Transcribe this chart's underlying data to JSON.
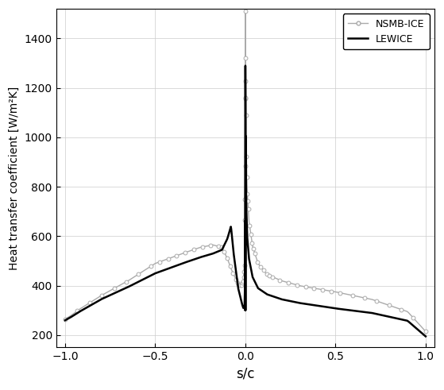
{
  "title": "",
  "xlabel": "s/c",
  "ylabel": "Heat transfer coefficient [W/m²K]",
  "xlim": [
    -1.05,
    1.05
  ],
  "ylim": [
    150,
    1520
  ],
  "yticks": [
    200,
    400,
    600,
    800,
    1000,
    1200,
    1400
  ],
  "xticks": [
    -1.0,
    -0.5,
    0.0,
    0.5,
    1.0
  ],
  "legend_labels": [
    "NSMB-ICE",
    "LEWICE"
  ],
  "nsmb_color": "#aaaaaa",
  "lewice_color": "#000000",
  "background_color": "#ffffff",
  "grid_color": "#cccccc",
  "nsmb_lw": 1.0,
  "lewice_lw": 1.8,
  "marker_size": 3.5,
  "xlabel_fontsize": 12,
  "ylabel_fontsize": 10,
  "tick_fontsize": 10,
  "legend_fontsize": 9
}
